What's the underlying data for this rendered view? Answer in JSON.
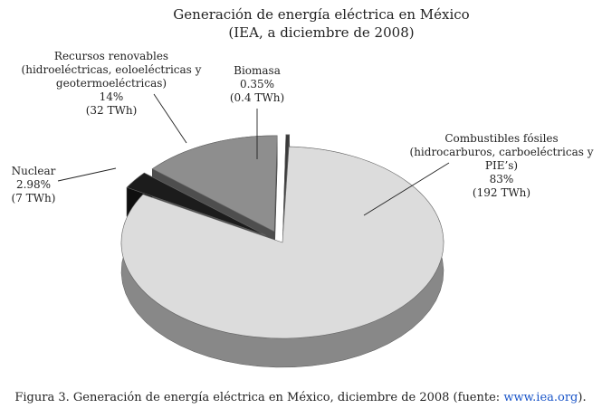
{
  "chart_data": {
    "type": "pie",
    "title": "Generación de energía eléctrica en México",
    "subtitle": "(IEA, a diciembre de 2008)",
    "slices": [
      {
        "key": "fossil",
        "label_lines": [
          "Combustibles fósiles",
          "(hidrocarburos, carboeléctricas y",
          "PIE’s)"
        ],
        "percent_text": "83%",
        "energy_text": "(192 TWh)",
        "value": 83,
        "color": "#dcdcdc",
        "exploded": false
      },
      {
        "key": "nuclear",
        "label_lines": [
          "Nuclear"
        ],
        "percent_text": "2.98%",
        "energy_text": "(7 TWh)",
        "value": 2.98,
        "color": "#1c1c1c",
        "exploded": true
      },
      {
        "key": "renewables",
        "label_lines": [
          "Recursos renovables",
          "(hidroeléctricas, eoloeléctricas y",
          "geotermoeléctricas)"
        ],
        "percent_text": "14%",
        "energy_text": "(32 TWh)",
        "value": 14,
        "color": "#8e8e8e",
        "exploded": true
      },
      {
        "key": "biomass",
        "label_lines": [
          "Biomasa"
        ],
        "percent_text": "0.35%",
        "energy_text": "(0.4 TWh)",
        "value": 0.35,
        "color": "#3a3a3a",
        "exploded": true
      }
    ]
  },
  "caption": {
    "text": "Figura 3. Generación de energía eléctrica en México, diciembre de 2008 (fuente: ",
    "link": "www.iea.org",
    "end": ")."
  }
}
